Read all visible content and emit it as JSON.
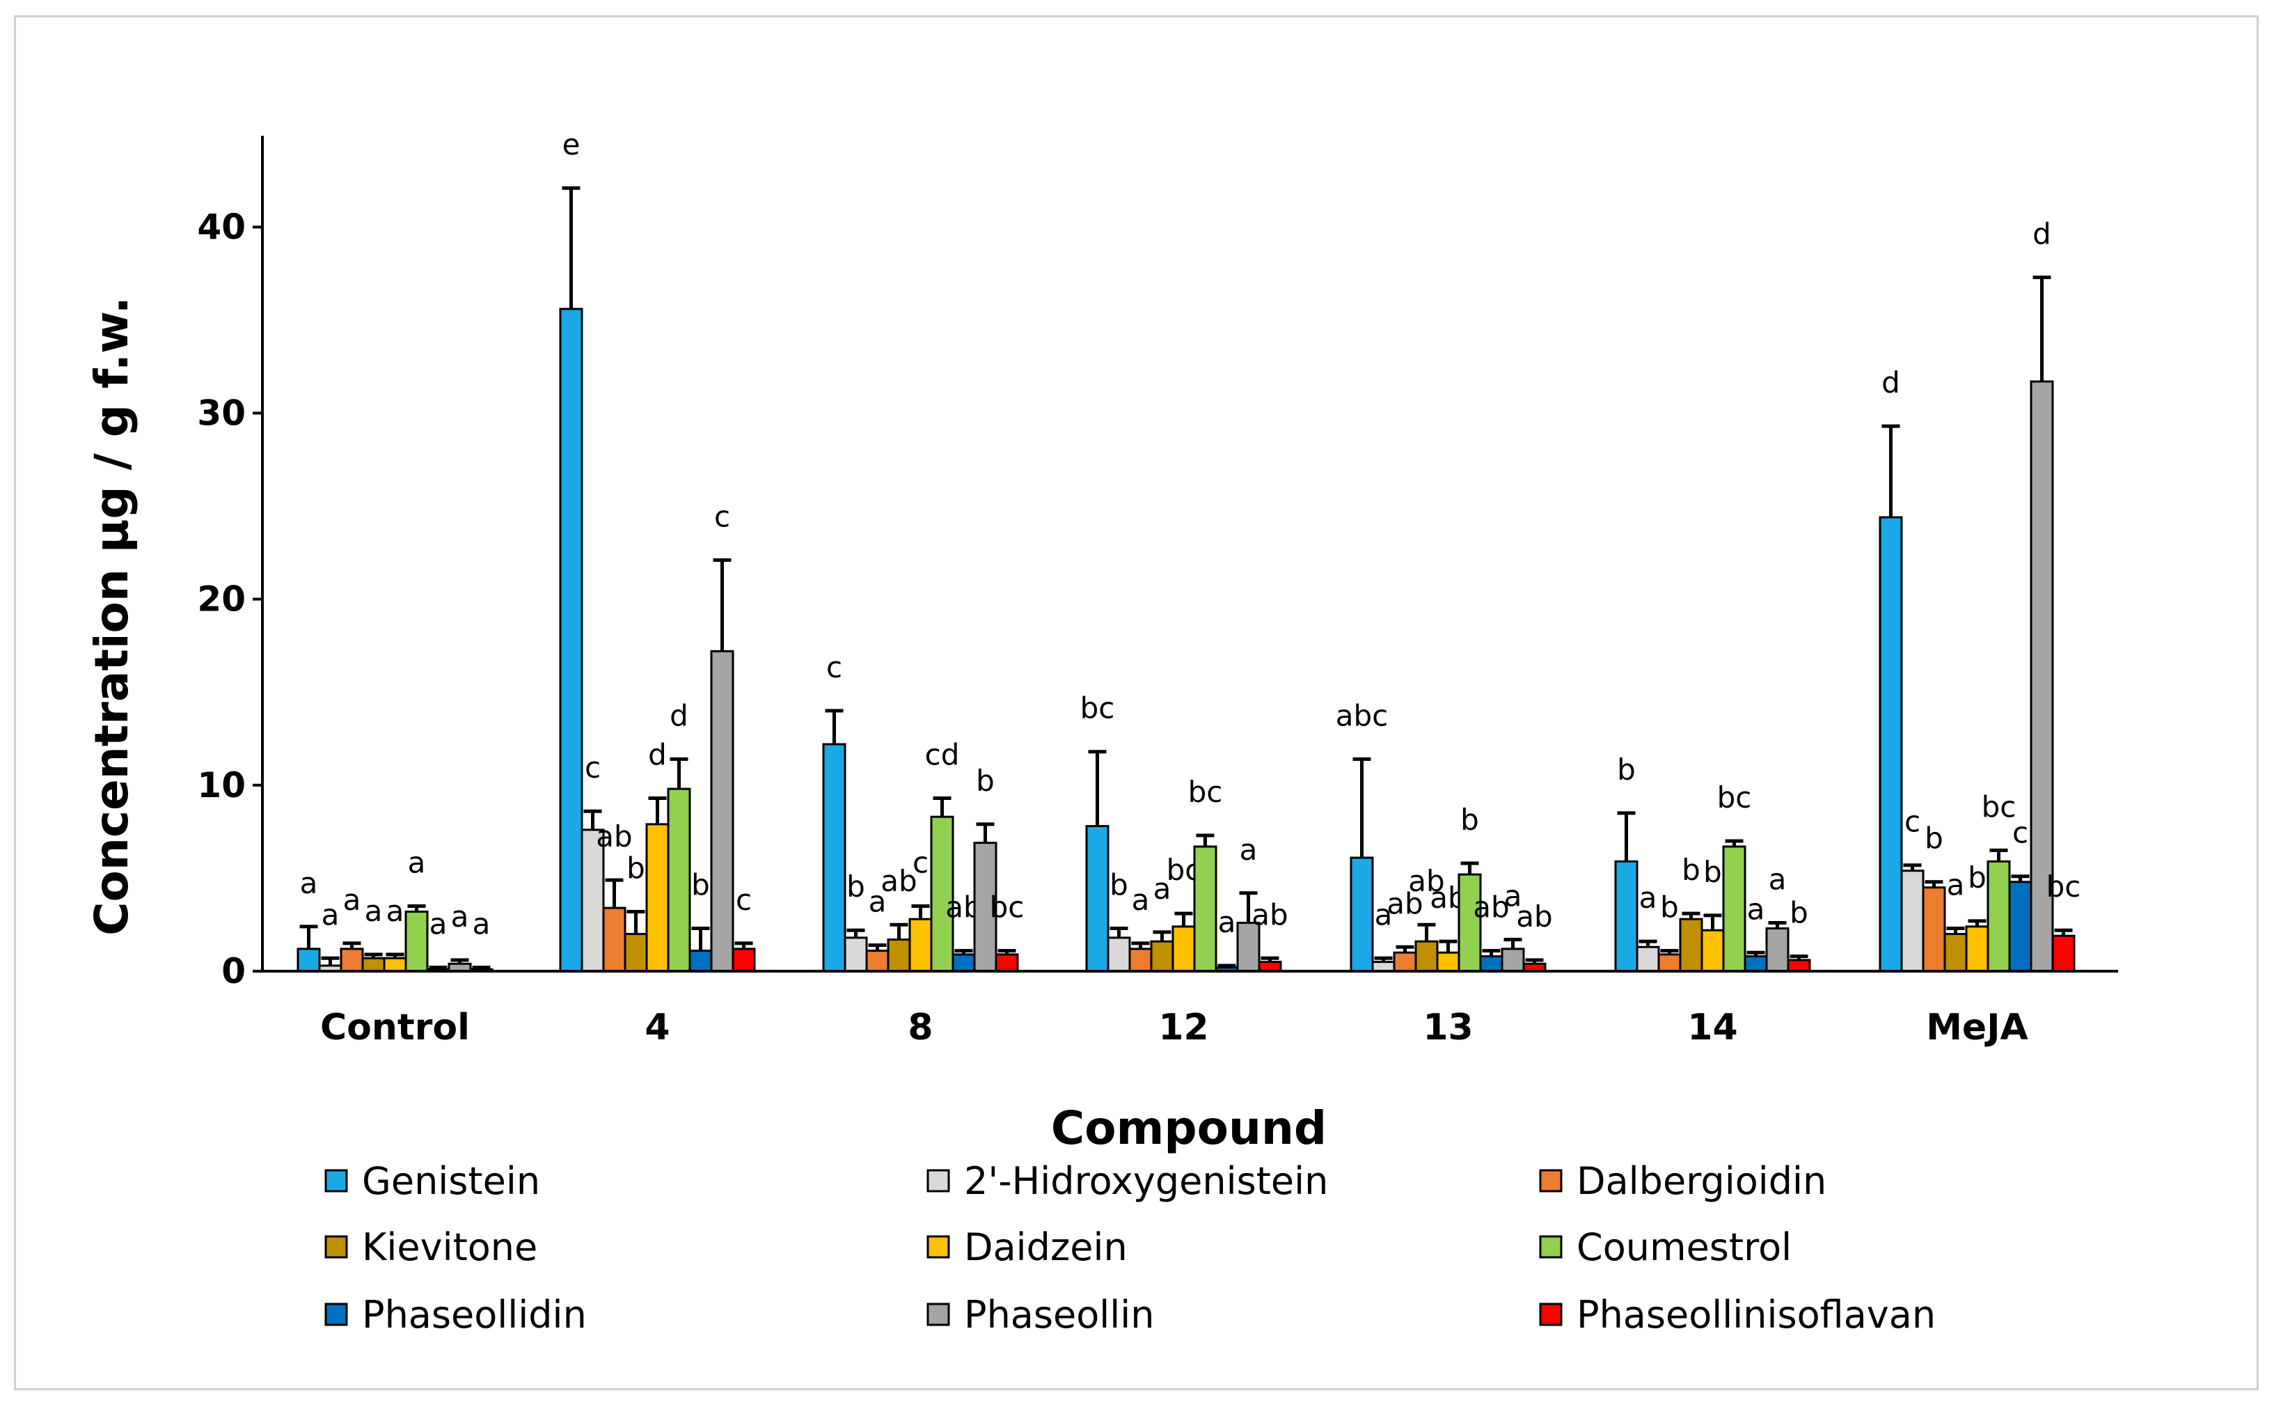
{
  "chart_data": {
    "type": "bar",
    "title": "",
    "xlabel": "Compound",
    "ylabel": "Concentration µg / g  f.w.",
    "ylim": [
      0,
      45
    ],
    "yticks": [
      0,
      10,
      20,
      30,
      40
    ],
    "grid": false,
    "legend_position": "bottom",
    "categories": [
      "Control",
      "4",
      "8",
      "12",
      "13",
      "14",
      "MeJA"
    ],
    "series": [
      {
        "name": "Genistein",
        "color": "#1ba9e6",
        "values": [
          1.2,
          35.6,
          12.2,
          7.8,
          6.1,
          5.9,
          24.4
        ],
        "errors": [
          1.2,
          6.5,
          1.8,
          4.0,
          5.3,
          2.6,
          4.9
        ],
        "letters": [
          "a",
          "e",
          "c",
          "bc",
          "abc",
          "b",
          "d"
        ]
      },
      {
        "name": "2'-Hidroxygenistein",
        "color": "#d9d9d9",
        "values": [
          0.3,
          7.6,
          1.8,
          1.8,
          0.5,
          1.3,
          5.4
        ],
        "errors": [
          0.4,
          1.0,
          0.4,
          0.5,
          0.2,
          0.3,
          0.3
        ],
        "letters": [
          "a",
          "c",
          "b",
          "b",
          "a",
          "a",
          "c"
        ]
      },
      {
        "name": "Dalbergioidin",
        "color": "#ed7d31",
        "values": [
          1.2,
          3.4,
          1.1,
          1.2,
          1.0,
          0.9,
          4.5
        ],
        "errors": [
          0.3,
          1.5,
          0.3,
          0.3,
          0.3,
          0.2,
          0.3
        ],
        "letters": [
          "a",
          "ab",
          "a",
          "a",
          "ab",
          "b",
          "b"
        ]
      },
      {
        "name": "Kievitone",
        "color": "#bf9000",
        "values": [
          0.7,
          2.0,
          1.7,
          1.6,
          1.6,
          2.8,
          2.0
        ],
        "errors": [
          0.2,
          1.2,
          0.8,
          0.5,
          0.9,
          0.3,
          0.3
        ],
        "letters": [
          "a",
          "b",
          "ab",
          "a",
          "ab",
          "b",
          "a"
        ]
      },
      {
        "name": "Daidzein",
        "color": "#ffc000",
        "values": [
          0.7,
          7.9,
          2.8,
          2.4,
          1.0,
          2.2,
          2.4
        ],
        "errors": [
          0.2,
          1.4,
          0.7,
          0.7,
          0.6,
          0.8,
          0.3
        ],
        "letters": [
          "a",
          "d",
          "c",
          "bc",
          "ab",
          "b",
          "b"
        ]
      },
      {
        "name": "Coumestrol",
        "color": "#92d050",
        "values": [
          3.2,
          9.8,
          8.3,
          6.7,
          5.2,
          6.7,
          5.9
        ],
        "errors": [
          0.3,
          1.6,
          1.0,
          0.6,
          0.6,
          0.3,
          0.6
        ],
        "letters": [
          "a",
          "d",
          "cd",
          "bc",
          "b",
          "bc",
          "bc"
        ]
      },
      {
        "name": "Phaseollidin",
        "color": "#0070c0",
        "values": [
          0.1,
          1.1,
          0.9,
          0.2,
          0.8,
          0.8,
          4.8
        ],
        "errors": [
          0.1,
          1.2,
          0.2,
          0.1,
          0.3,
          0.2,
          0.3
        ],
        "letters": [
          "a",
          "b",
          "ab",
          "a",
          "ab",
          "a",
          "c"
        ]
      },
      {
        "name": "Phaseollin",
        "color": "#a5a5a5",
        "values": [
          0.4,
          17.2,
          6.9,
          2.6,
          1.2,
          2.3,
          31.7
        ],
        "errors": [
          0.2,
          4.9,
          1.0,
          1.6,
          0.5,
          0.3,
          5.6
        ],
        "letters": [
          "a",
          "c",
          "b",
          "a",
          "a",
          "a",
          "d"
        ]
      },
      {
        "name": "Phaseollinisoflavan",
        "color": "#ff0000",
        "values": [
          0.1,
          1.2,
          0.9,
          0.5,
          0.4,
          0.6,
          1.9
        ],
        "errors": [
          0.1,
          0.3,
          0.2,
          0.2,
          0.2,
          0.2,
          0.3
        ],
        "letters": [
          "a",
          "c",
          "bc",
          "ab",
          "ab",
          "b",
          "bc"
        ]
      }
    ]
  }
}
